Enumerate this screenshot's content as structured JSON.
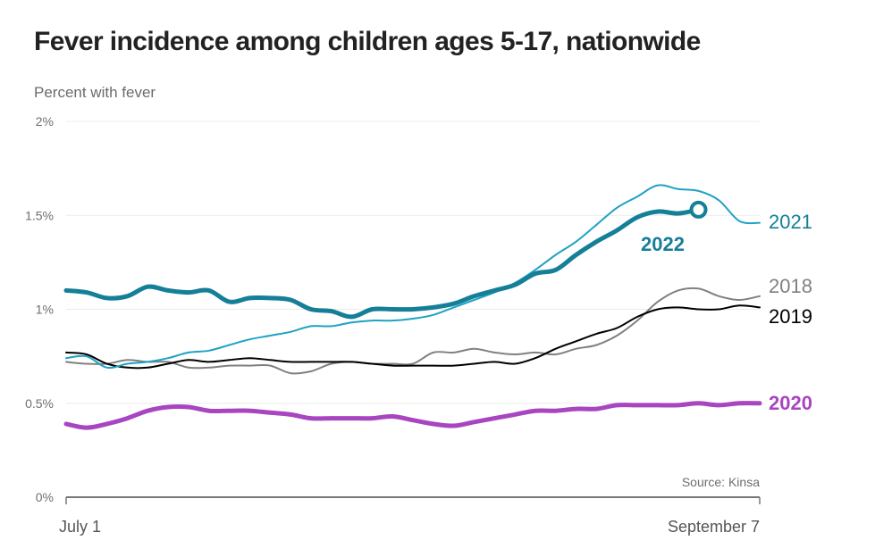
{
  "header": {
    "title": "Fever incidence among children ages 5-17, nationwide",
    "subtitle": "Percent with fever"
  },
  "source": "Source: Kinsa",
  "chart_data": {
    "type": "line",
    "title": "Fever incidence among children ages 5-17, nationwide",
    "ylabel": "Percent with fever",
    "xlabel": "",
    "x_range": [
      "July 1",
      "September 7"
    ],
    "x_ticks": [
      {
        "day": 0,
        "label": "July 1"
      },
      {
        "day": 68,
        "label": "September 7"
      }
    ],
    "ylim": [
      0,
      2
    ],
    "y_ticks": [
      {
        "value": 0,
        "label": "0%"
      },
      {
        "value": 0.5,
        "label": "0.5%"
      },
      {
        "value": 1,
        "label": "1%"
      },
      {
        "value": 1.5,
        "label": "1.5%"
      },
      {
        "value": 2,
        "label": "2%"
      }
    ],
    "grid": true,
    "legend": "direct-labels-right",
    "x_unit": "days since July 1",
    "series": [
      {
        "name": "2018",
        "label": "2018",
        "color": "#808080",
        "weight": "thin",
        "x": [
          0,
          2,
          4,
          6,
          8,
          10,
          12,
          14,
          16,
          18,
          20,
          22,
          24,
          26,
          28,
          30,
          32,
          34,
          36,
          38,
          40,
          42,
          44,
          46,
          48,
          50,
          52,
          54,
          56,
          58,
          60,
          62,
          64,
          66,
          68
        ],
        "values": [
          0.72,
          0.71,
          0.71,
          0.73,
          0.72,
          0.72,
          0.69,
          0.69,
          0.7,
          0.7,
          0.7,
          0.66,
          0.67,
          0.71,
          0.72,
          0.71,
          0.71,
          0.71,
          0.77,
          0.77,
          0.79,
          0.77,
          0.76,
          0.77,
          0.76,
          0.79,
          0.81,
          0.86,
          0.94,
          1.04,
          1.1,
          1.11,
          1.07,
          1.05,
          1.07
        ]
      },
      {
        "name": "2019",
        "label": "2019",
        "color": "#000000",
        "weight": "thin",
        "x": [
          0,
          2,
          4,
          6,
          8,
          10,
          12,
          14,
          16,
          18,
          20,
          22,
          24,
          26,
          28,
          30,
          32,
          34,
          36,
          38,
          40,
          42,
          44,
          46,
          48,
          50,
          52,
          54,
          56,
          58,
          60,
          62,
          64,
          66,
          68
        ],
        "values": [
          0.77,
          0.76,
          0.71,
          0.69,
          0.69,
          0.71,
          0.73,
          0.72,
          0.73,
          0.74,
          0.73,
          0.72,
          0.72,
          0.72,
          0.72,
          0.71,
          0.7,
          0.7,
          0.7,
          0.7,
          0.71,
          0.72,
          0.71,
          0.74,
          0.79,
          0.83,
          0.87,
          0.9,
          0.96,
          1.0,
          1.01,
          1.0,
          1.0,
          1.02,
          1.01
        ]
      },
      {
        "name": "2020",
        "label": "2020",
        "color": "#a845c0",
        "weight": "thick",
        "x": [
          0,
          2,
          4,
          6,
          8,
          10,
          12,
          14,
          16,
          18,
          20,
          22,
          24,
          26,
          28,
          30,
          32,
          34,
          36,
          38,
          40,
          42,
          44,
          46,
          48,
          50,
          52,
          54,
          56,
          58,
          60,
          62,
          64,
          66,
          68
        ],
        "values": [
          0.39,
          0.37,
          0.39,
          0.42,
          0.46,
          0.48,
          0.48,
          0.46,
          0.46,
          0.46,
          0.45,
          0.44,
          0.42,
          0.42,
          0.42,
          0.42,
          0.43,
          0.41,
          0.39,
          0.38,
          0.4,
          0.42,
          0.44,
          0.46,
          0.46,
          0.47,
          0.47,
          0.49,
          0.49,
          0.49,
          0.49,
          0.5,
          0.49,
          0.5,
          0.5
        ]
      },
      {
        "name": "2021",
        "label": "2021",
        "color": "#1fa2c4",
        "label_color": "#157f98",
        "weight": "thin",
        "x": [
          0,
          2,
          4,
          6,
          8,
          10,
          12,
          14,
          16,
          18,
          20,
          22,
          24,
          26,
          28,
          30,
          32,
          34,
          36,
          38,
          40,
          42,
          44,
          46,
          48,
          50,
          52,
          54,
          56,
          58,
          60,
          62,
          64,
          66,
          68
        ],
        "values": [
          0.74,
          0.75,
          0.69,
          0.71,
          0.72,
          0.74,
          0.77,
          0.78,
          0.81,
          0.84,
          0.86,
          0.88,
          0.91,
          0.91,
          0.93,
          0.94,
          0.94,
          0.95,
          0.97,
          1.01,
          1.05,
          1.09,
          1.14,
          1.21,
          1.29,
          1.36,
          1.45,
          1.54,
          1.6,
          1.66,
          1.64,
          1.63,
          1.58,
          1.47,
          1.46
        ]
      },
      {
        "name": "2022",
        "label": "2022",
        "color": "#157f98",
        "weight": "thick",
        "end_marker": "open-circle",
        "x": [
          0,
          2,
          4,
          6,
          8,
          10,
          12,
          14,
          16,
          18,
          20,
          22,
          24,
          26,
          28,
          30,
          32,
          34,
          36,
          38,
          40,
          42,
          44,
          46,
          48,
          50,
          52,
          54,
          56,
          58,
          60,
          62
        ],
        "values": [
          1.1,
          1.09,
          1.06,
          1.07,
          1.12,
          1.1,
          1.09,
          1.1,
          1.04,
          1.06,
          1.06,
          1.05,
          1.0,
          0.99,
          0.96,
          1.0,
          1.0,
          1.0,
          1.01,
          1.03,
          1.07,
          1.1,
          1.13,
          1.19,
          1.21,
          1.29,
          1.36,
          1.42,
          1.49,
          1.52,
          1.51,
          1.53
        ]
      }
    ]
  }
}
